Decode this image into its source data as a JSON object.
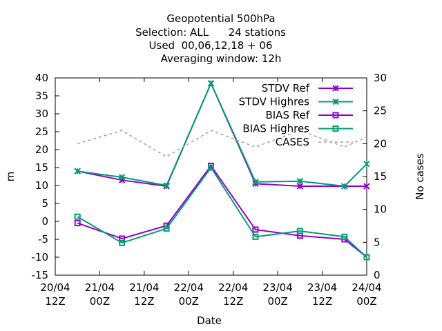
{
  "title_lines": [
    "Geopotential 500hPa",
    "Selection: ALL      24 stations",
    "Used  00,06,12,18 + 06",
    "Averaging window: 12h"
  ],
  "chart_data": {
    "type": "line",
    "xlabel": "Date",
    "ylabel": "m",
    "y2label": "No cases",
    "xlim": [
      0,
      72
    ],
    "ylim": [
      -15,
      40
    ],
    "y2lim": [
      0,
      30
    ],
    "grid": false,
    "legend_position": "top-right",
    "x_ticks": [
      {
        "x": 0,
        "label": [
          "20/04",
          "12Z"
        ]
      },
      {
        "x": 12,
        "label": [
          "21/04",
          "00Z"
        ]
      },
      {
        "x": 24,
        "label": [
          "21/04",
          "12Z"
        ]
      },
      {
        "x": 36,
        "label": [
          "22/04",
          "00Z"
        ]
      },
      {
        "x": 48,
        "label": [
          "22/04",
          "12Z"
        ]
      },
      {
        "x": 60,
        "label": [
          "23/04",
          "00Z"
        ]
      },
      {
        "x": 72,
        "label": [
          "23/04",
          "12Z"
        ]
      },
      {
        "x": 84,
        "label": [
          "24/04",
          "00Z"
        ]
      }
    ],
    "y_ticks": [
      -15,
      -10,
      -5,
      0,
      5,
      10,
      15,
      20,
      25,
      30,
      35,
      40
    ],
    "y2_ticks": [
      0,
      5,
      10,
      15,
      20,
      25,
      30
    ],
    "x": [
      6,
      18,
      30,
      42,
      54,
      66,
      78,
      84
    ],
    "series": [
      {
        "name": "STDV Ref",
        "axis": "y",
        "color": "#9400d3",
        "marker": "x",
        "dash": "",
        "values": [
          14.0,
          11.5,
          9.8,
          38.5,
          10.5,
          9.8,
          9.8,
          9.8
        ]
      },
      {
        "name": "STDV Highres",
        "axis": "y",
        "color": "#009e73",
        "marker": "x",
        "dash": "",
        "values": [
          14.0,
          12.3,
          10.0,
          38.5,
          11.0,
          11.2,
          9.8,
          16.0
        ]
      },
      {
        "name": "BIAS Ref",
        "axis": "y",
        "color": "#9400d3",
        "marker": "square",
        "dash": "",
        "values": [
          -0.5,
          -4.8,
          -1.2,
          15.5,
          -2.3,
          -4.0,
          -5.0,
          -10.0
        ]
      },
      {
        "name": "BIAS Highres",
        "axis": "y",
        "color": "#009e73",
        "marker": "square",
        "dash": "",
        "values": [
          1.3,
          -6.0,
          -2.0,
          15.0,
          -4.3,
          -2.7,
          -4.3,
          -10.0
        ]
      },
      {
        "name": "CASES",
        "axis": "y2",
        "color": "#a0a0a0",
        "marker": "none",
        "dash": "4,4",
        "values": [
          20,
          22,
          18,
          22,
          19.5,
          22,
          19.5,
          21
        ]
      }
    ]
  }
}
